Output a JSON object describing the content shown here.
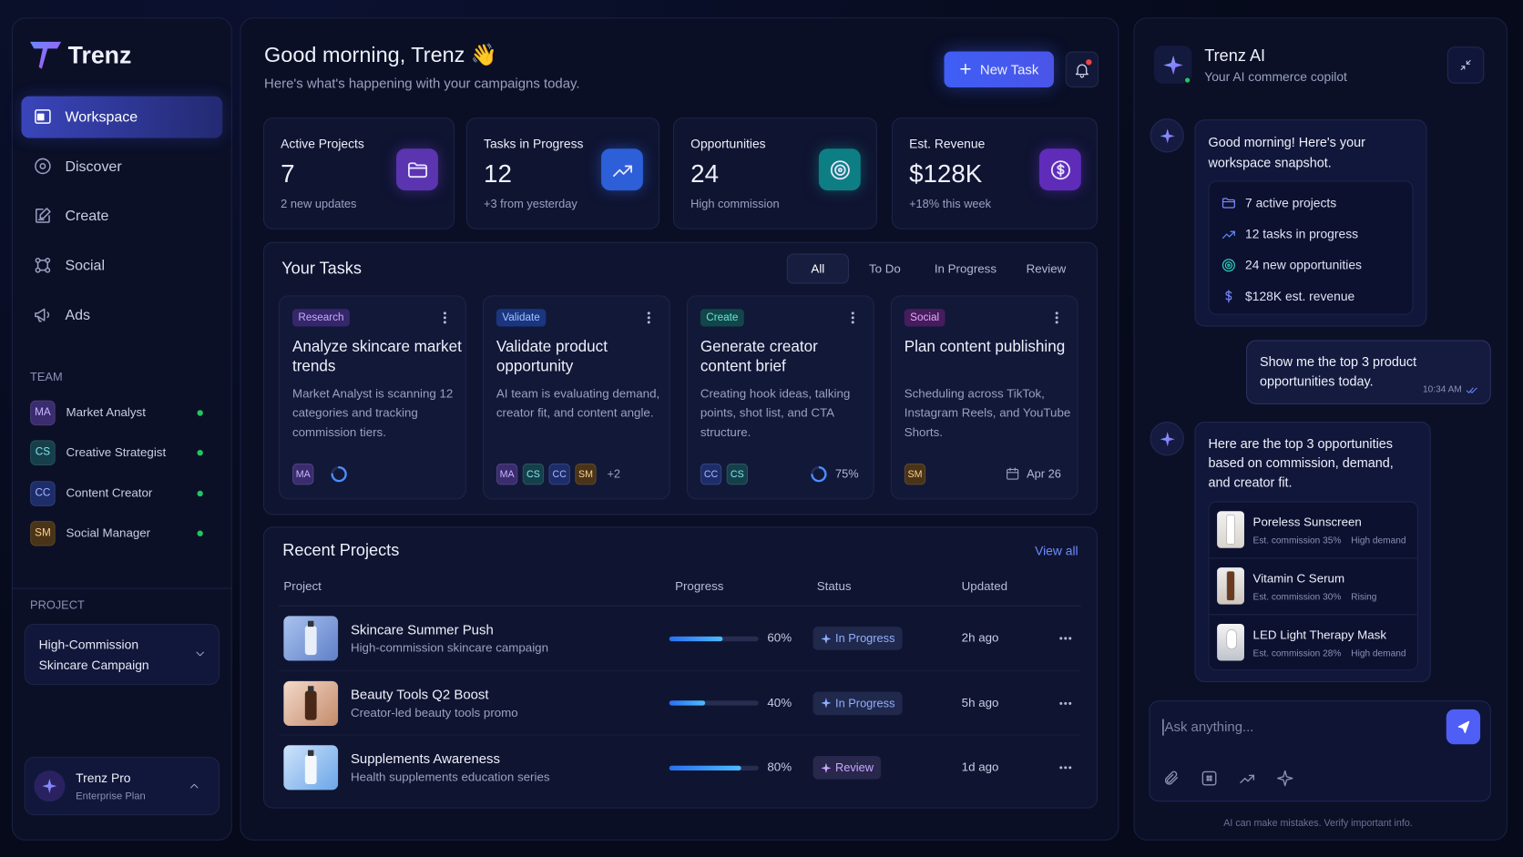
{
  "sidebar": {
    "brand": "Trenz",
    "nav": [
      "Workspace",
      "Discover",
      "Create",
      "Social",
      "Ads"
    ],
    "team_title": "TEAM",
    "team": [
      {
        "initials": "MA",
        "name": "Market Analyst",
        "color": "#3a2c6e",
        "text_color": "#c9b6ff"
      },
      {
        "initials": "CS",
        "name": "Creative Strategist",
        "color": "#15404b",
        "text_color": "#83e6e8"
      },
      {
        "initials": "CC",
        "name": "Content Creator",
        "color": "#1d2d6a",
        "text_color": "#a6b8ff"
      },
      {
        "initials": "SM",
        "name": "Social Manager",
        "color": "#4a3418",
        "text_color": "#ffd08e"
      }
    ],
    "project_title": "PROJECT",
    "project": "High-Commission Skincare Campaign",
    "plan": {
      "name": "Trenz Pro",
      "tier": "Enterprise Plan"
    }
  },
  "header": {
    "greeting": "Good morning, Trenz 👋",
    "subtitle": "Here's what's happening with your campaigns today.",
    "new_task": "New Task"
  },
  "stats": [
    {
      "label": "Active Projects",
      "value": "7",
      "note": "2 new updates",
      "color": "#5b35b0"
    },
    {
      "label": "Tasks in Progress",
      "value": "12",
      "note": "+3 from yesterday",
      "color": "#2c5fd8"
    },
    {
      "label": "Opportunities",
      "value": "24",
      "note": "High commission",
      "color": "#0d7f84"
    },
    {
      "label": "Est. Revenue",
      "value": "$128K",
      "note": "+18% this week",
      "color": "#5f2cba"
    }
  ],
  "tasks": {
    "title": "Your Tasks",
    "tabs": [
      "All",
      "To Do",
      "In Progress",
      "Review"
    ],
    "cards": [
      {
        "tag": "Research",
        "tag_color": "#c6a9ff",
        "tag_bg": "#34276a",
        "title": "Analyze skincare market trends",
        "desc": "Market Analyst is scanning 12 categories and tracking commission tiers.",
        "avatars": [
          "MA"
        ]
      },
      {
        "tag": "Validate",
        "tag_color": "#9cc6ff",
        "tag_bg": "#1c3580",
        "title": "Validate product opportunity",
        "desc": "AI team is evaluating demand, creator fit, and content angle.",
        "avatars": [
          "MA",
          "CS",
          "CC",
          "SM"
        ],
        "more": "+2"
      },
      {
        "tag": "Create",
        "tag_color": "#67e8d6",
        "tag_bg": "#12464a",
        "title": "Generate creator content brief",
        "desc": "Creating hook ideas, talking points, shot list, and CTA structure.",
        "avatars": [
          "CC",
          "CS"
        ],
        "progress": {
          "value": 75,
          "label": "75%"
        }
      },
      {
        "tag": "Social",
        "tag_color": "#e3aaff",
        "tag_bg": "#461c5c",
        "title": "Plan content publishing",
        "desc": "Scheduling across TikTok, Instagram Reels, and YouTube Shorts.",
        "avatars": [
          "SM"
        ],
        "date": "Apr 26"
      }
    ]
  },
  "projects": {
    "title": "Recent Projects",
    "view_all": "View all",
    "columns": [
      "Project",
      "Progress",
      "Status",
      "Updated"
    ],
    "rows": [
      {
        "name": "Skincare Summer Push",
        "desc": "High-commission skincare campaign",
        "progress": {
          "value": 60,
          "label": "60%"
        },
        "status": "In Progress",
        "status_color": "#8fb0ff",
        "updated": "2h ago"
      },
      {
        "name": "Beauty Tools Q2 Boost",
        "desc": "Creator-led beauty tools promo",
        "progress": {
          "value": 40,
          "label": "40%"
        },
        "status": "In Progress",
        "status_color": "#8fb0ff",
        "updated": "5h ago"
      },
      {
        "name": "Supplements Awareness",
        "desc": "Health supplements education series",
        "progress": {
          "value": 80,
          "label": "80%"
        },
        "status": "Review",
        "status_color": "#c9a8ff",
        "updated": "1d ago"
      }
    ]
  },
  "ai": {
    "title": "Trenz AI",
    "subtitle": "Your AI commerce copilot",
    "greeting": "Good morning! Here's your workspace snapshot.",
    "snapshot": [
      "7 active projects",
      "12 tasks in progress",
      "24 new opportunities",
      "$128K est. revenue"
    ],
    "user_message": "Show me the top 3 product opportunities today.",
    "user_time": "10:34 AM",
    "reply": "Here are the top 3 opportunities based on commission, demand, and creator fit.",
    "products": [
      {
        "name": "Poreless Sunscreen",
        "commission": "Est. commission 35%",
        "tag": "High demand"
      },
      {
        "name": "Vitamin C Serum",
        "commission": "Est. commission 30%",
        "tag": "Rising"
      },
      {
        "name": "LED Light Therapy Mask",
        "commission": "Est. commission 28%",
        "tag": "High demand"
      }
    ],
    "placeholder": "Ask anything...",
    "disclaimer": "AI can make mistakes. Verify important info."
  }
}
